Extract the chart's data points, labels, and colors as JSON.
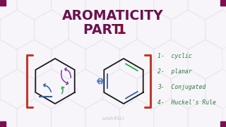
{
  "background_color": "#f7f5f9",
  "title_line1": "AROMATICITY",
  "title_line2": "PART ",
  "title_num": "1",
  "title_color": "#6b1050",
  "title_fontsize": 13.5,
  "part_fontsize": 13.5,
  "num_color": "#8b0030",
  "list_items": [
    "1-  cyclic",
    "2-  planar",
    "3-  Conjugated",
    "4-  Huckel's Rule"
  ],
  "list_color": "#2a7a3a",
  "list_fontsize": 5.8,
  "bracket_color": "#c0392b",
  "arrow_color": "#5b7ec8",
  "hex_color": "#1a1a1a",
  "curve_color_purple": "#8040a0",
  "curve_color_green": "#2aaa40",
  "curve_color_blue": "#3060a0",
  "watermark": "Leah4Sci",
  "watermark_color": "#bbbbbb",
  "corner_color": "#7b1050",
  "hexbg_color": "#ddd8e8"
}
